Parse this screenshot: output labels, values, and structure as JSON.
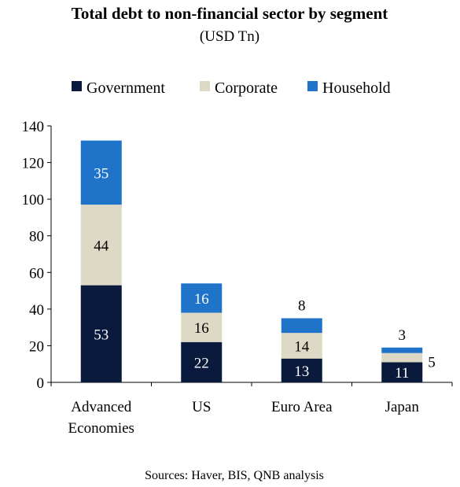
{
  "chart_data": {
    "type": "bar",
    "stacked": true,
    "title": "Total debt to non-financial sector by segment",
    "subtitle": "(USD Tn)",
    "categories": [
      [
        "Advanced",
        "Economies"
      ],
      [
        "US"
      ],
      [
        "Euro Area"
      ],
      [
        "Japan"
      ]
    ],
    "series": [
      {
        "name": "Government",
        "color": "#0a1a3c",
        "label_color": "#ffffff",
        "values": [
          53,
          22,
          13,
          11
        ]
      },
      {
        "name": "Corporate",
        "color": "#ddd9c4",
        "label_color": "#000000",
        "values": [
          44,
          16,
          14,
          5
        ]
      },
      {
        "name": "Household",
        "color": "#1f73c8",
        "label_color": "#ffffff",
        "values": [
          35,
          16,
          8,
          3
        ]
      }
    ],
    "ylim": [
      0,
      140
    ],
    "yticks": [
      "0",
      "20",
      "40",
      "60",
      "80",
      "100",
      "120",
      "140"
    ],
    "legend_position": "top",
    "grid": false,
    "source": "Sources: Haver, BIS, QNB analysis"
  }
}
